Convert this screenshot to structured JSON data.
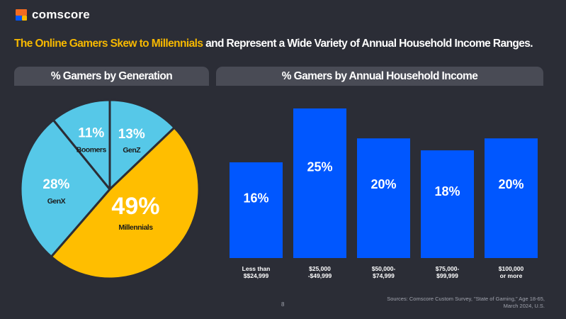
{
  "brand": {
    "name": "comscore",
    "colors": {
      "orange": "#f26b21",
      "blue": "#0057ff"
    }
  },
  "headline": {
    "accent": "The Online Gamers Skew to Millennials",
    "rest": " and Represent a Wide Variety of Annual Household Income Ranges.",
    "accent_color": "#f6b800"
  },
  "panels": {
    "generation_title": "% Gamers by Generation",
    "income_title": "% Gamers by Annual Household Income"
  },
  "chart_data": [
    {
      "type": "pie",
      "title": "% Gamers by Generation",
      "slices": [
        {
          "label": "GenZ",
          "value": 13,
          "display": "13%",
          "color": "#56c8e8"
        },
        {
          "label": "Millennials",
          "value": 49,
          "display": "49%",
          "color": "#ffbe00"
        },
        {
          "label": "GenX",
          "value": 28,
          "display": "28%",
          "color": "#56c8e8"
        },
        {
          "label": "Boomers",
          "value": 11,
          "display": "11%",
          "color": "#56c8e8"
        }
      ]
    },
    {
      "type": "bar",
      "title": "% Gamers by Annual Household Income",
      "categories": [
        [
          "Less than",
          "$$24,999"
        ],
        [
          "$25,000",
          "-$49,999"
        ],
        [
          "$50,000-",
          "$74,999"
        ],
        [
          "$75,000-",
          "$99,999"
        ],
        [
          "$100,000",
          "or more"
        ]
      ],
      "values": [
        16,
        25,
        20,
        18,
        20
      ],
      "labels": [
        "16%",
        "25%",
        "20%",
        "18%",
        "20%"
      ],
      "ylim": [
        0,
        25
      ],
      "bar_color": "#0057ff"
    }
  ],
  "footer": {
    "source_line1": "Sources: Comscore Custom Survey, \"State of Gaming,\" Age 18-65,",
    "source_line2": "March 2024, U.S.",
    "page_number": "8"
  }
}
